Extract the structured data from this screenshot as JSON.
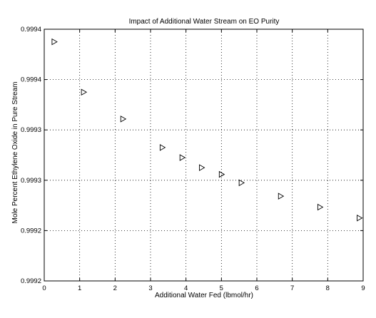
{
  "chart_data": {
    "type": "scatter",
    "title": "Impact of Additional Water Stream on EO Purity",
    "xlabel": "Additional Water Fed (lbmol/hr)",
    "ylabel": "Mole Percent Ethylene Oxide in Pure Stream",
    "xlim": [
      0,
      9
    ],
    "ylim": [
      0.99915,
      0.99945
    ],
    "x_ticks": [
      "0",
      "1",
      "2",
      "3",
      "4",
      "5",
      "6",
      "7",
      "8",
      "9"
    ],
    "y_ticks": [
      "0.9992",
      "0.9992",
      "0.9993",
      "0.9993",
      "0.9994",
      "0.9994"
    ],
    "grid": true,
    "marker": "right-pointing triangle",
    "series": [
      {
        "x": [
          0.28,
          1.11,
          2.22,
          3.33,
          3.89,
          4.44,
          5.0,
          5.56,
          6.67,
          7.78,
          8.89
        ],
        "y": [
          0.999435,
          0.999375,
          0.999343,
          0.999309,
          0.999297,
          0.999285,
          0.999277,
          0.999267,
          0.999251,
          0.999238,
          0.999225
        ]
      }
    ]
  }
}
